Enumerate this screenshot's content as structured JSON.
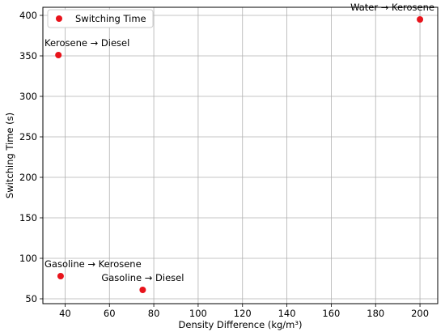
{
  "chart_data": {
    "type": "scatter",
    "title": "",
    "xlabel": "Density Difference (kg/m³)",
    "ylabel": "Switching Time (s)",
    "xlim": [
      30,
      208
    ],
    "ylim": [
      44,
      410
    ],
    "xticks": [
      40,
      60,
      80,
      100,
      120,
      140,
      160,
      180,
      200
    ],
    "yticks": [
      50,
      100,
      150,
      200,
      250,
      300,
      350,
      400
    ],
    "grid": true,
    "legend_position": "top-left",
    "series": [
      {
        "name": "Switching Time",
        "color": "#e8131b",
        "points": [
          {
            "x": 37,
            "y": 351,
            "label": "Kerosene → Diesel"
          },
          {
            "x": 200,
            "y": 395,
            "label": "Water → Kerosene"
          },
          {
            "x": 38,
            "y": 78,
            "label": "Gasoline → Kerosene"
          },
          {
            "x": 75,
            "y": 61,
            "label": "Gasoline → Diesel"
          }
        ]
      }
    ]
  }
}
